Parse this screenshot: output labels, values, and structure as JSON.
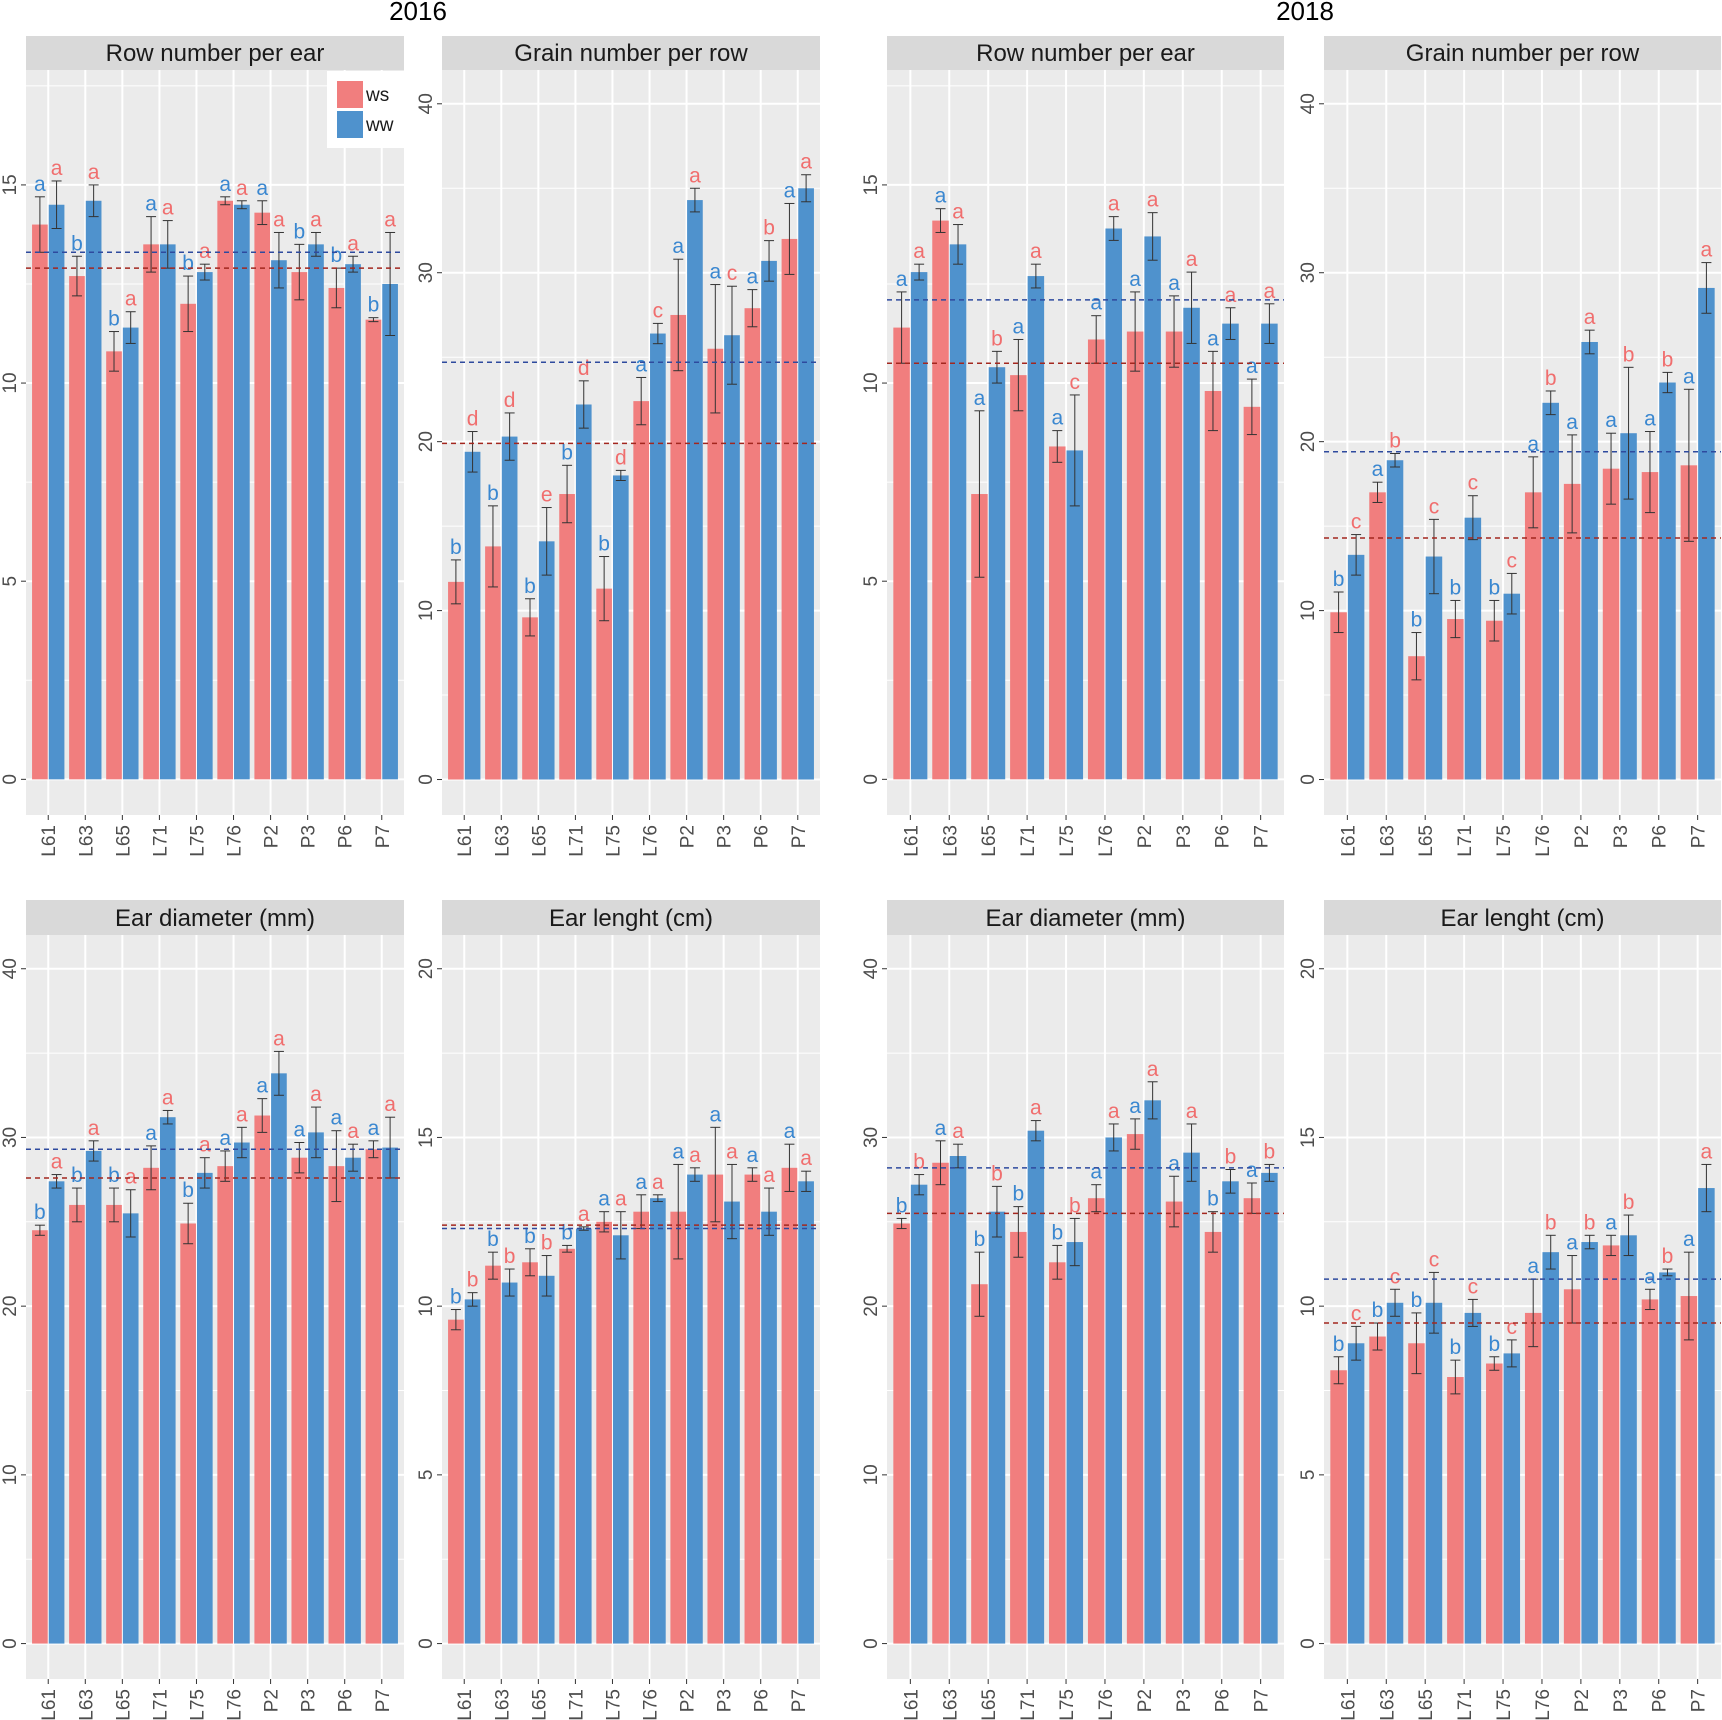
{
  "years": [
    "2016",
    "2018"
  ],
  "legend": {
    "items": [
      "ws",
      "ww"
    ],
    "position": "top-right of first panel"
  },
  "colors": {
    "ws": "#F17E7E",
    "ww": "#4F92CD",
    "ws_mean": "#A3271F",
    "ww_mean": "#2E4A9E",
    "letter_ws_bar": "#3A87D0",
    "letter_ww_bar": "#F06E6E"
  },
  "chart_data": [
    {
      "type": "bar",
      "year": "2016",
      "title": "Row number per ear",
      "categories": [
        "L61",
        "L63",
        "L65",
        "L71",
        "L75",
        "L76",
        "P2",
        "P3",
        "P6",
        "P7"
      ],
      "ylim": [
        -0.9,
        17.9
      ],
      "yticks": [
        0,
        5,
        10,
        15
      ],
      "series": [
        {
          "name": "ws",
          "values": [
            14.0,
            12.7,
            10.8,
            13.5,
            12.0,
            14.6,
            14.3,
            12.8,
            12.4,
            11.6
          ],
          "errors": [
            0.7,
            0.5,
            0.5,
            0.7,
            0.7,
            0.1,
            0.3,
            0.7,
            0.5,
            0.05
          ]
        },
        {
          "name": "ww",
          "values": [
            14.5,
            14.6,
            11.4,
            13.5,
            12.8,
            14.5,
            13.1,
            13.5,
            13.0,
            12.5
          ],
          "errors": [
            0.6,
            0.4,
            0.4,
            0.6,
            0.2,
            0.1,
            0.7,
            0.3,
            0.2,
            1.3
          ]
        }
      ],
      "letters_ws": [
        "a",
        "b",
        "b",
        "a",
        "b",
        "a",
        "a",
        "b",
        "b",
        "b"
      ],
      "letters_ww": [
        "a",
        "a",
        "a",
        "a",
        "a",
        "a",
        "a",
        "a",
        "a",
        "a"
      ],
      "means": {
        "ws": 12.9,
        "ww": 13.3
      }
    },
    {
      "type": "bar",
      "year": "2016",
      "title": "Grain number per row",
      "categories": [
        "L61",
        "L63",
        "L65",
        "L71",
        "L75",
        "L76",
        "P2",
        "P3",
        "P6",
        "P7"
      ],
      "ylim": [
        -2.1,
        42
      ],
      "yticks": [
        0,
        10,
        20,
        30,
        40
      ],
      "series": [
        {
          "name": "ws",
          "values": [
            11.7,
            13.8,
            9.6,
            16.9,
            11.3,
            22.4,
            27.5,
            25.5,
            27.9,
            32.0
          ],
          "errors": [
            1.3,
            2.4,
            1.1,
            1.7,
            1.9,
            1.4,
            3.3,
            3.8,
            1.1,
            2.1
          ]
        },
        {
          "name": "ww",
          "values": [
            19.4,
            20.3,
            14.1,
            22.2,
            18.0,
            26.4,
            34.3,
            26.3,
            30.7,
            35.0
          ],
          "errors": [
            1.2,
            1.4,
            2.0,
            1.4,
            0.3,
            0.6,
            0.7,
            2.9,
            1.2,
            0.8
          ]
        }
      ],
      "letters_ws": [
        "b",
        "b",
        "b",
        "b",
        "b",
        "a",
        "a",
        "a",
        "a",
        "a"
      ],
      "letters_ww": [
        "d",
        "d",
        "e",
        "d",
        "d",
        "c",
        "a",
        "c",
        "b",
        "a"
      ],
      "means": {
        "ws": 19.9,
        "ww": 24.7
      }
    },
    {
      "type": "bar",
      "year": "2018",
      "title": "Row number per ear",
      "categories": [
        "L61",
        "L63",
        "L65",
        "L71",
        "L75",
        "L76",
        "P2",
        "P3",
        "P6",
        "P7"
      ],
      "ylim": [
        -0.9,
        17.9
      ],
      "yticks": [
        0,
        5,
        10,
        15
      ],
      "series": [
        {
          "name": "ws",
          "values": [
            11.4,
            14.1,
            7.2,
            10.2,
            8.4,
            11.1,
            11.3,
            11.3,
            9.8,
            9.4
          ],
          "errors": [
            0.9,
            0.3,
            2.1,
            0.9,
            0.4,
            0.6,
            1.0,
            0.9,
            1.0,
            0.7
          ]
        },
        {
          "name": "ww",
          "values": [
            12.8,
            13.5,
            10.4,
            12.7,
            8.3,
            13.9,
            13.7,
            11.9,
            11.5,
            11.5
          ],
          "errors": [
            0.2,
            0.5,
            0.4,
            0.3,
            1.4,
            0.3,
            0.6,
            0.9,
            0.4,
            0.5
          ]
        }
      ],
      "letters_ws": [
        "a",
        "a",
        "a",
        "a",
        "a",
        "a",
        "a",
        "a",
        "a",
        "a"
      ],
      "letters_ww": [
        "a",
        "a",
        "b",
        "a",
        "c",
        "a",
        "a",
        "a",
        "a",
        "a"
      ],
      "means": {
        "ws": 10.5,
        "ww": 12.1
      }
    },
    {
      "type": "bar",
      "year": "2018",
      "title": "Grain number per row",
      "categories": [
        "L61",
        "L63",
        "L65",
        "L71",
        "L75",
        "L76",
        "P2",
        "P3",
        "P6",
        "P7"
      ],
      "ylim": [
        -2.1,
        42
      ],
      "yticks": [
        0,
        10,
        20,
        30,
        40
      ],
      "series": [
        {
          "name": "ws",
          "values": [
            9.9,
            17.0,
            7.3,
            9.5,
            9.4,
            17.0,
            17.5,
            18.4,
            18.2,
            18.6
          ],
          "errors": [
            1.2,
            0.6,
            1.4,
            1.1,
            1.2,
            2.1,
            2.9,
            2.1,
            2.4,
            4.5
          ]
        },
        {
          "name": "ww",
          "values": [
            13.3,
            18.9,
            13.2,
            15.5,
            11.0,
            22.3,
            25.9,
            20.5,
            23.5,
            29.1
          ],
          "errors": [
            1.2,
            0.4,
            2.2,
            1.3,
            1.2,
            0.7,
            0.7,
            3.9,
            0.6,
            1.5
          ]
        }
      ],
      "letters_ws": [
        "b",
        "a",
        "b",
        "b",
        "b",
        "a",
        "a",
        "a",
        "a",
        "a"
      ],
      "letters_ww": [
        "c",
        "b",
        "c",
        "c",
        "c",
        "b",
        "a",
        "b",
        "b",
        "a"
      ],
      "means": {
        "ws": 14.3,
        "ww": 19.4
      }
    },
    {
      "type": "bar",
      "year": "2016",
      "title": "Ear diameter (mm)",
      "categories": [
        "L61",
        "L63",
        "L65",
        "L71",
        "L75",
        "L76",
        "P2",
        "P3",
        "P6",
        "P7"
      ],
      "ylim": [
        -2.1,
        42
      ],
      "yticks": [
        0,
        10,
        20,
        30,
        40
      ],
      "series": [
        {
          "name": "ws",
          "values": [
            24.5,
            26.0,
            26.0,
            28.2,
            24.9,
            28.3,
            31.3,
            28.8,
            28.3,
            29.3
          ],
          "errors": [
            0.3,
            1.0,
            1.0,
            1.3,
            1.2,
            0.9,
            1.0,
            0.9,
            2.1,
            0.5
          ]
        },
        {
          "name": "ww",
          "values": [
            27.4,
            29.2,
            25.5,
            31.2,
            27.9,
            29.7,
            33.8,
            30.3,
            28.8,
            29.4
          ],
          "errors": [
            0.4,
            0.6,
            1.4,
            0.4,
            0.9,
            0.9,
            1.3,
            1.5,
            0.8,
            1.8
          ]
        }
      ],
      "letters_ws": [
        "b",
        "b",
        "b",
        "a",
        "b",
        "a",
        "a",
        "a",
        "a",
        "a"
      ],
      "letters_ww": [
        "a",
        "a",
        "a",
        "a",
        "a",
        "a",
        "a",
        "a",
        "a",
        "a"
      ],
      "means": {
        "ws": 27.6,
        "ww": 29.3
      }
    },
    {
      "type": "bar",
      "year": "2016",
      "title": "Ear lenght (cm)",
      "categories": [
        "L61",
        "L63",
        "L65",
        "L71",
        "L75",
        "L76",
        "P2",
        "P3",
        "P6",
        "P7"
      ],
      "ylim": [
        -1.05,
        21
      ],
      "yticks": [
        0,
        5,
        10,
        15,
        20
      ],
      "series": [
        {
          "name": "ws",
          "values": [
            9.6,
            11.2,
            11.3,
            11.7,
            12.5,
            12.8,
            12.8,
            13.9,
            13.9,
            14.1
          ],
          "errors": [
            0.3,
            0.4,
            0.4,
            0.1,
            0.3,
            0.5,
            1.4,
            1.4,
            0.2,
            0.7
          ]
        },
        {
          "name": "ww",
          "values": [
            10.2,
            10.7,
            10.9,
            12.3,
            12.1,
            13.2,
            13.9,
            13.1,
            12.8,
            13.7
          ],
          "errors": [
            0.2,
            0.4,
            0.6,
            0.05,
            0.7,
            0.1,
            0.2,
            1.1,
            0.7,
            0.3
          ]
        }
      ],
      "letters_ws": [
        "b",
        "b",
        "b",
        "b",
        "a",
        "a",
        "a",
        "a",
        "a",
        "a"
      ],
      "letters_ww": [
        "b",
        "b",
        "b",
        "a",
        "a",
        "a",
        "a",
        "a",
        "a",
        "a"
      ],
      "means": {
        "ws": 12.4,
        "ww": 12.3
      }
    },
    {
      "type": "bar",
      "year": "2018",
      "title": "Ear diameter (mm)",
      "categories": [
        "L61",
        "L63",
        "L65",
        "L71",
        "L75",
        "L76",
        "P2",
        "P3",
        "P6",
        "P7"
      ],
      "ylim": [
        -2.1,
        42
      ],
      "yticks": [
        0,
        10,
        20,
        30,
        40
      ],
      "series": [
        {
          "name": "ws",
          "values": [
            24.9,
            28.5,
            21.3,
            24.4,
            22.6,
            26.4,
            30.2,
            26.2,
            24.4,
            26.4
          ],
          "errors": [
            0.3,
            1.3,
            1.9,
            1.5,
            1.0,
            0.8,
            0.9,
            1.5,
            1.2,
            0.9
          ]
        },
        {
          "name": "ww",
          "values": [
            27.2,
            28.9,
            25.6,
            30.4,
            23.8,
            30.0,
            32.2,
            29.1,
            27.4,
            27.9
          ],
          "errors": [
            0.6,
            0.7,
            1.5,
            0.6,
            1.4,
            0.8,
            1.1,
            1.7,
            0.7,
            0.5
          ]
        }
      ],
      "letters_ws": [
        "b",
        "a",
        "b",
        "b",
        "b",
        "a",
        "a",
        "a",
        "b",
        "a"
      ],
      "letters_ww": [
        "b",
        "a",
        "b",
        "a",
        "b",
        "a",
        "a",
        "a",
        "b",
        "b"
      ],
      "means": {
        "ws": 25.5,
        "ww": 28.2
      }
    },
    {
      "type": "bar",
      "year": "2018",
      "title": "Ear lenght (cm)",
      "categories": [
        "L61",
        "L63",
        "L65",
        "L71",
        "L75",
        "L76",
        "P2",
        "P3",
        "P6",
        "P7"
      ],
      "ylim": [
        -1.05,
        21
      ],
      "yticks": [
        0,
        5,
        10,
        15,
        20
      ],
      "series": [
        {
          "name": "ws",
          "values": [
            8.1,
            9.1,
            8.9,
            7.9,
            8.3,
            9.8,
            10.5,
            11.8,
            10.2,
            10.3
          ],
          "errors": [
            0.4,
            0.4,
            0.9,
            0.5,
            0.2,
            1.0,
            1.0,
            0.3,
            0.3,
            1.3
          ]
        },
        {
          "name": "ww",
          "values": [
            8.9,
            10.1,
            10.1,
            9.8,
            8.6,
            11.6,
            11.9,
            12.1,
            11.0,
            13.5
          ],
          "errors": [
            0.5,
            0.4,
            0.9,
            0.4,
            0.4,
            0.5,
            0.2,
            0.6,
            0.1,
            0.7
          ]
        }
      ],
      "letters_ws": [
        "b",
        "b",
        "b",
        "b",
        "b",
        "a",
        "a",
        "a",
        "a",
        "a"
      ],
      "letters_ww": [
        "c",
        "c",
        "c",
        "c",
        "c",
        "b",
        "b",
        "b",
        "b",
        "a"
      ],
      "means": {
        "ws": 9.5,
        "ww": 10.8
      }
    }
  ]
}
